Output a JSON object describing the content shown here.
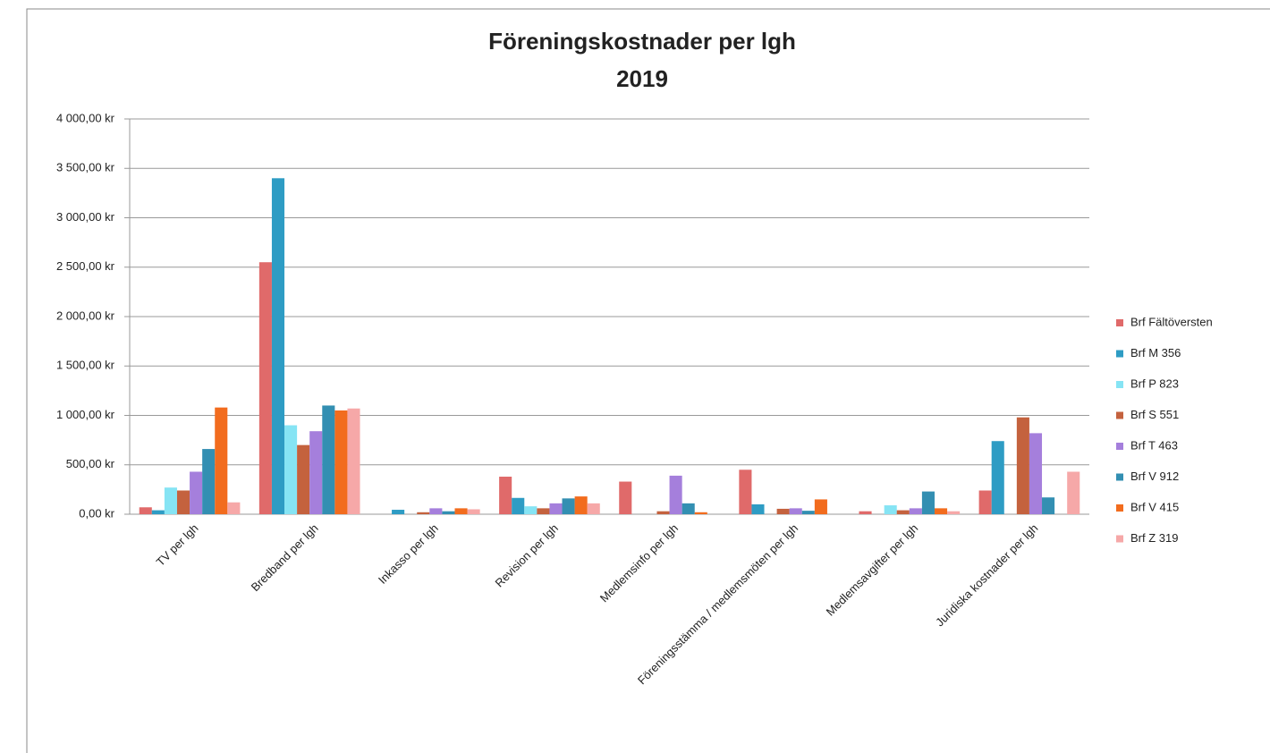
{
  "chart_data": {
    "type": "bar",
    "title": "Föreningskostnader per lgh",
    "subtitle": "2019",
    "categories": [
      "TV per lgh",
      "Bredband per lgh",
      "Inkasso per lgh",
      "Revision per lgh",
      "Medlemsinfo per lgh",
      "Föreningsstämma / medlemsmöten per lgh",
      "Medlemsavgifter per lgh",
      "Juridiska kostnader per lgh"
    ],
    "series": [
      {
        "name": "Brf Fältöversten",
        "color": "#e06a6a",
        "values": [
          70,
          2550,
          0,
          380,
          330,
          450,
          30,
          240
        ]
      },
      {
        "name": "Brf M 356",
        "color": "#2e9cc4",
        "values": [
          40,
          3400,
          45,
          165,
          0,
          100,
          0,
          740
        ]
      },
      {
        "name": "Brf P 823",
        "color": "#86e4f4",
        "values": [
          270,
          900,
          0,
          80,
          0,
          0,
          90,
          0
        ]
      },
      {
        "name": "Brf S 551",
        "color": "#c4623e",
        "values": [
          240,
          700,
          20,
          60,
          30,
          55,
          40,
          980
        ]
      },
      {
        "name": "Brf T 463",
        "color": "#a57fdc",
        "values": [
          430,
          840,
          60,
          110,
          390,
          60,
          60,
          820
        ]
      },
      {
        "name": "Brf V 912",
        "color": "#338fb2",
        "values": [
          660,
          1100,
          30,
          160,
          110,
          35,
          230,
          170
        ]
      },
      {
        "name": "Brf V 415",
        "color": "#f26c1e",
        "values": [
          1080,
          1050,
          60,
          180,
          20,
          150,
          60,
          0
        ]
      },
      {
        "name": "Brf Z 319",
        "color": "#f6a8a8",
        "values": [
          120,
          1070,
          50,
          110,
          0,
          0,
          30,
          430
        ]
      }
    ],
    "ylim": [
      0,
      4000
    ],
    "yticks": [
      {
        "value": 0,
        "label": "0,00 kr"
      },
      {
        "value": 500,
        "label": "500,00 kr"
      },
      {
        "value": 1000,
        "label": "1 000,00 kr"
      },
      {
        "value": 1500,
        "label": "1 500,00 kr"
      },
      {
        "value": 2000,
        "label": "2 000,00 kr"
      },
      {
        "value": 2500,
        "label": "2 500,00 kr"
      },
      {
        "value": 3000,
        "label": "3 000,00 kr"
      },
      {
        "value": 3500,
        "label": "3 500,00 kr"
      },
      {
        "value": 4000,
        "label": "4 000,00 kr"
      }
    ],
    "grid": true,
    "legend": "right"
  }
}
